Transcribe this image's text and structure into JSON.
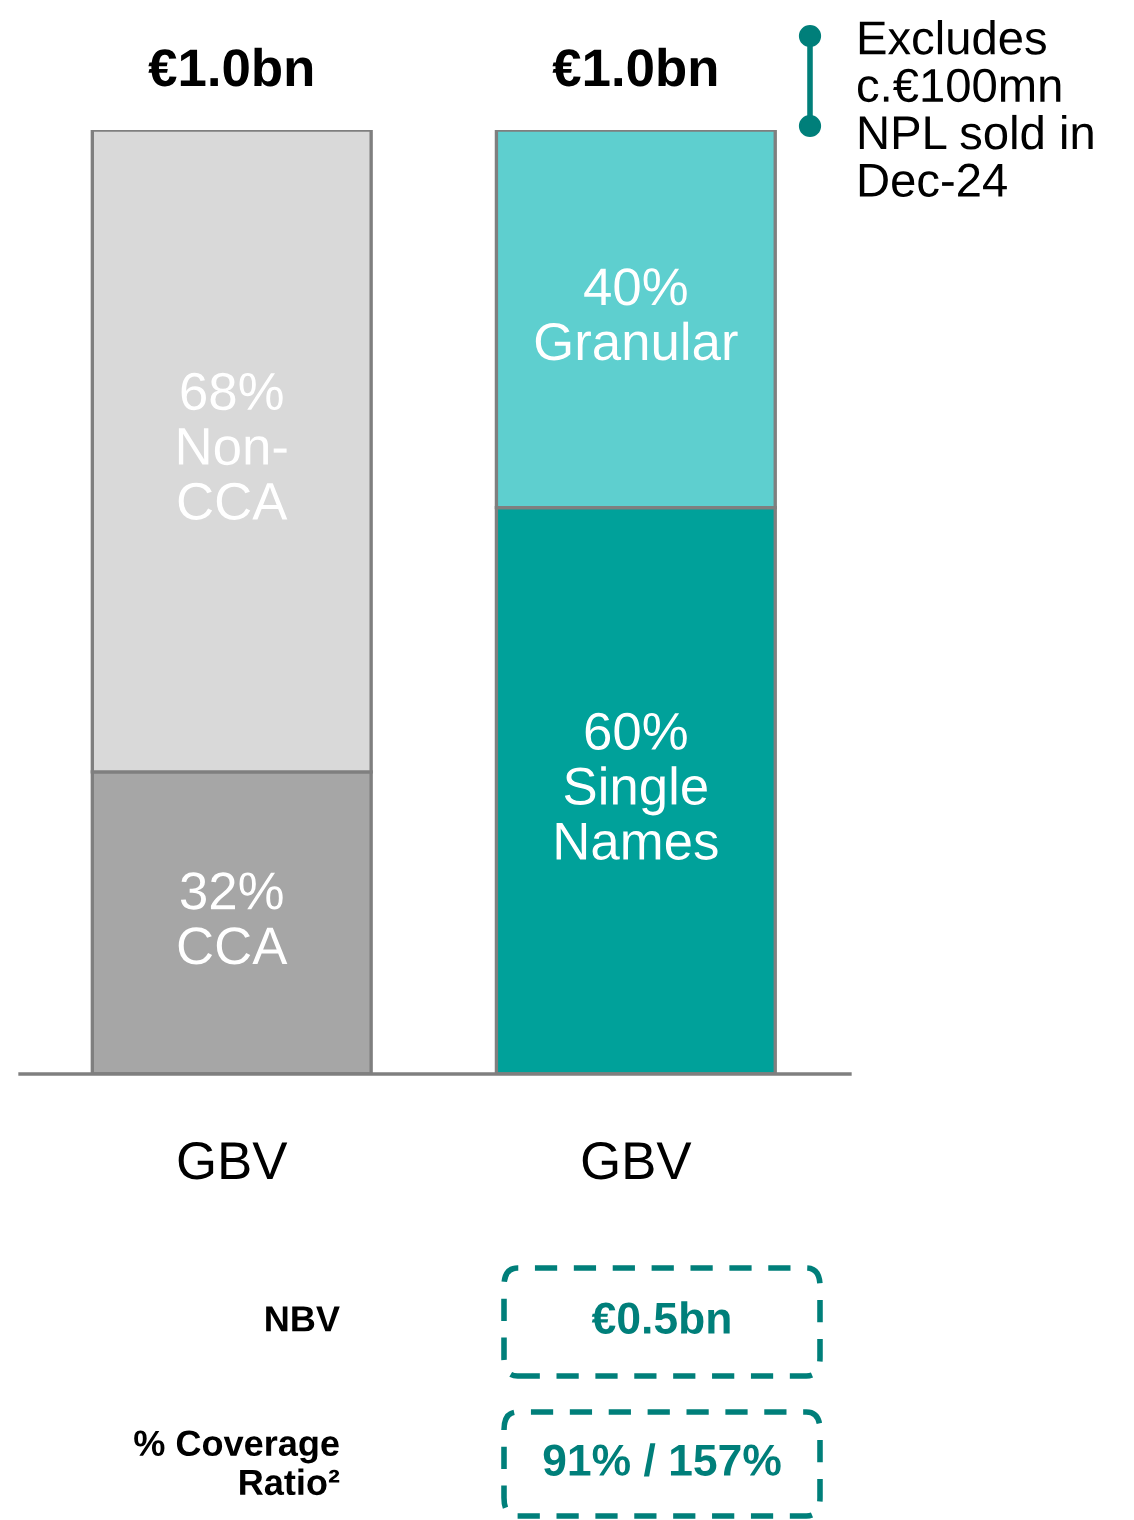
{
  "chart_data": {
    "type": "bar",
    "ylim": [
      0,
      100
    ],
    "tick_labels": "x",
    "stacked": true,
    "categories": [
      "GBV",
      "GBV"
    ],
    "series": [
      {
        "colors": [
          "#a6a6a6",
          "#00a19a"
        ],
        "values": [
          32,
          60
        ],
        "value_labels": [
          "32%\nCCA",
          "60%\nSingle\nNames"
        ]
      },
      {
        "colors": [
          "#d9d9d9",
          "#5ecfcf"
        ],
        "values": [
          68,
          40
        ],
        "value_labels": [
          "68%\nNon-\nCCA",
          "40%\nGranular"
        ]
      }
    ],
    "annotations": [
      "€1.0bn",
      "€1.0bn",
      "Excludes\nc.€100mn\nNPL sold in\nDec-24",
      "NBV",
      "€0.5bn",
      "% Coverage\nRatio²",
      "91% / 157%"
    ]
  }
}
